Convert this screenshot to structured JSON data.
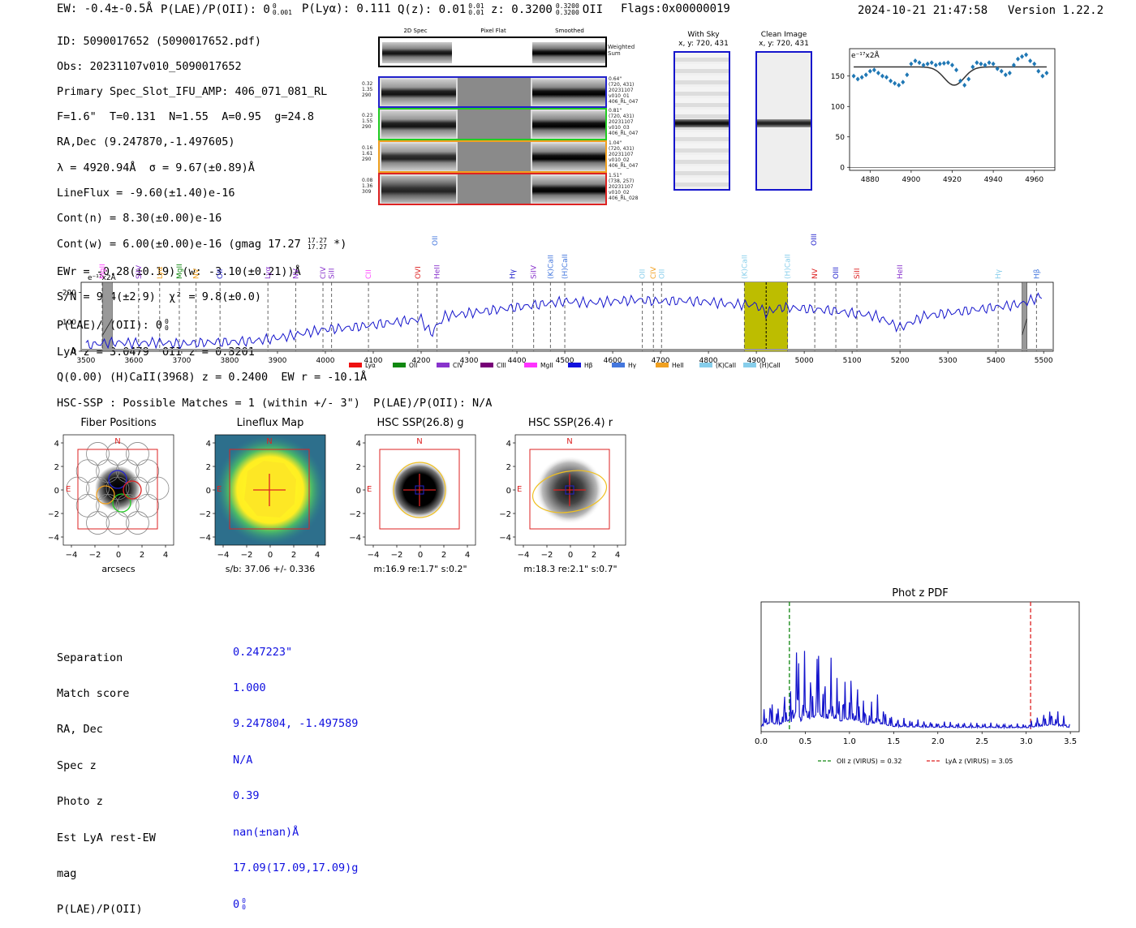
{
  "header": {
    "ew": "EW: -0.4±-0.5Å",
    "plae_label": "P(LAE)/P(OII): 0",
    "plae_sup": "0",
    "plae_sub": "0.001",
    "plya": "P(Lyα): 0.111",
    "qz": "Q(z): 0.01",
    "qz_sup": "0.01",
    "qz_sub": "0.01",
    "z": "z: 0.3200",
    "z_sup": "0.3200",
    "z_sub": "0.3200",
    "z_line": "OII",
    "flags": "Flags:0x00000019",
    "datetime": "2024-10-21 21:47:58",
    "version": "Version 1.22.2"
  },
  "info": {
    "id": "ID: 5090017652 (5090017652.pdf)",
    "obs": "Obs: 20231107v010_5090017652",
    "primary": "Primary Spec_Slot_IFU_AMP: 406_071_081_RL",
    "fstats": "F=1.6\"  T=0.131  N=1.55  A=0.95  g=24.8",
    "radec": "RA,Dec (9.247870,-1.497605)",
    "lambda": "λ = 4920.94Å  σ = 9.67(±0.89)Å",
    "lineflux": "LineFlux = -9.60(±1.40)e-16",
    "contn": "Cont(n) = 8.30(±0.00)e-16",
    "contw": "Cont(w) = 6.00(±0.00)e-16 (gmag 17.27",
    "contw_sup": "17.27",
    "contw_sub": "17.27",
    "contw_end": "*)",
    "ewr": "EWr = -0.28(±0.19) (w: -3.10(±0.21))Å",
    "sn": "S/N = 9.4(±2.9)  χ² = 9.8(±0.0)",
    "plae": "P(LAE)/P(OII): 0",
    "plae_sup": "0",
    "plae_sub": "0",
    "lyaz": "LyA z = 3.0479  OII z = 0.3201",
    "qline": "Q(0.00) (H)CaII(3968) z = 0.2400  EW r = -10.1Å"
  },
  "cutouts": {
    "col_titles": [
      "2D Spec",
      "Pixel Flat",
      "Smoothed"
    ],
    "weighted": "Weighted\nSum",
    "rows": [
      {
        "left": "0.32\n1.35\n290",
        "right": "0.64\"\n(720, 431)\n20231107\nv010_01\n406_RL_047",
        "color": "#2222cc"
      },
      {
        "left": "0.23\n1.55\n290",
        "right": "0.81\"\n(720, 431)\n20231107\nv010_03\n406_RL_047",
        "color": "#22cc22"
      },
      {
        "left": "0.16\n1.61\n290",
        "right": "1.04\"\n(720, 431)\n20231107\nv010_02\n406_RL_047",
        "color": "#f0a020"
      },
      {
        "left": "0.08\n1.36\n309",
        "right": "1.51\"\n(738, 257)\n20231107\nv010_02\n406_RL_028",
        "color": "#dd2222"
      }
    ]
  },
  "sky": {
    "with_sky_title": "With Sky",
    "with_sky_xy": "x, y: 720, 431",
    "clean_title": "Clean Image",
    "clean_xy": "x, y: 720, 431"
  },
  "zoom_chart": {
    "unit_label": "e⁻¹⁷x2Å",
    "xticks": [
      "4880",
      "4900",
      "4920",
      "4940",
      "4960"
    ],
    "yticks": [
      "0",
      "50",
      "100",
      "150"
    ]
  },
  "spectrum": {
    "unit_label": "e⁻¹⁷x2Å",
    "xticks": [
      "3500",
      "3600",
      "3700",
      "3800",
      "3900",
      "4000",
      "4100",
      "4200",
      "4300",
      "4400",
      "4500",
      "4600",
      "4700",
      "4800",
      "4900",
      "5000",
      "5100",
      "5200",
      "5300",
      "5400",
      "5500"
    ],
    "yticks": [
      "0",
      "100",
      "200"
    ],
    "line_labels": [
      {
        "t": "MgII",
        "c": "#ff44ff",
        "w": 3534
      },
      {
        "t": "SiIV",
        "c": "#8833cc",
        "w": 3610
      },
      {
        "t": "Lyα",
        "c": "#f0a020",
        "w": 3654
      },
      {
        "t": "MgII",
        "c": "#118811",
        "w": 3695
      },
      {
        "t": "NV",
        "c": "#f0a020",
        "w": 3730
      },
      {
        "t": "OII",
        "c": "#2222cc",
        "w": 3780
      },
      {
        "t": "Lyα",
        "c": "#8833cc",
        "w": 3880
      },
      {
        "t": "NV",
        "c": "#8833cc",
        "w": 3938
      },
      {
        "t": "CIV",
        "c": "#8833cc",
        "w": 3995
      },
      {
        "t": "SiII",
        "c": "#8833cc",
        "w": 4013
      },
      {
        "t": "CII",
        "c": "#ff44ff",
        "w": 4090
      },
      {
        "t": "OVI",
        "c": "#dd2222",
        "w": 4193
      },
      {
        "t": "HeII",
        "c": "#8833cc",
        "w": 4233
      },
      {
        "t": "Hγ",
        "c": "#2222cc",
        "w": 4391
      },
      {
        "t": "SiIV",
        "c": "#8833cc",
        "w": 4435
      },
      {
        "t": "(K)CaII",
        "c": "#4477dd",
        "w": 4470
      },
      {
        "t": "(H)CaII",
        "c": "#4477dd",
        "w": 4500
      },
      {
        "t": "OII",
        "c": "#87ceeb",
        "w": 4662
      },
      {
        "t": "CIV",
        "c": "#f0a020",
        "w": 4685
      },
      {
        "t": "OII",
        "c": "#87ceeb",
        "w": 4702
      },
      {
        "t": "(K)CaII",
        "c": "#87ceeb",
        "w": 4875
      },
      {
        "t": "(H)CaII",
        "c": "#87ceeb",
        "w": 4965
      },
      {
        "t": "NV",
        "c": "#dd2222",
        "w": 5022
      },
      {
        "t": "OIII",
        "c": "#2222cc",
        "w": 5066
      },
      {
        "t": "SiII",
        "c": "#dd2222",
        "w": 5110
      },
      {
        "t": "HeII",
        "c": "#8833cc",
        "w": 5200
      },
      {
        "t": "Hγ",
        "c": "#87ceeb",
        "w": 5405
      },
      {
        "t": "Hβ",
        "c": "#4477dd",
        "w": 5485
      }
    ],
    "upper_labels": [
      {
        "t": "OII",
        "c": "#4477dd",
        "w": 4229
      },
      {
        "t": "OIII",
        "c": "#2222cc",
        "w": 5020
      }
    ],
    "legend": [
      {
        "t": "Lyα",
        "c": "#ee1111"
      },
      {
        "t": "OII",
        "c": "#118811"
      },
      {
        "t": "CIV",
        "c": "#8833cc"
      },
      {
        "t": "CIII",
        "c": "#770077"
      },
      {
        "t": "MgII",
        "c": "#ff33ff"
      },
      {
        "t": "Hβ",
        "c": "#1111dd"
      },
      {
        "t": "Hγ",
        "c": "#4477dd"
      },
      {
        "t": "HeII",
        "c": "#f0a020"
      },
      {
        "t": "(K)CaII",
        "c": "#87ceeb"
      },
      {
        "t": "(H)CaII",
        "c": "#87ceeb"
      }
    ]
  },
  "hsc": {
    "header": "HSC-SSP : Possible Matches = 1 (within +/- 3\")  P(LAE)/P(OII): N/A",
    "panels": [
      {
        "title": "Fiber Positions",
        "caption": "arcsecs"
      },
      {
        "title": "Lineflux Map",
        "caption": "s/b: 37.06 +/- 0.336"
      },
      {
        "title": "HSC SSP(26.8) g",
        "caption": "m:16.9  re:1.7\"  s:0.2\""
      },
      {
        "title": "HSC SSP(26.4) r",
        "caption": "m:18.3  re:2.1\"  s:0.7\""
      }
    ],
    "axis_ticks": [
      "4",
      "2",
      "0",
      "−2",
      "−4"
    ],
    "xaxis_ticks": [
      "−4",
      "−2",
      "0",
      "2",
      "4"
    ],
    "n_label": "N",
    "e_label": "E"
  },
  "match": {
    "labels": [
      "Separation",
      "Match score",
      "RA, Dec",
      "Spec z",
      "Photo z",
      "Est LyA rest-EW",
      "mag",
      "P(LAE)/P(OII)"
    ],
    "values": [
      "0.247223\"",
      "1.000",
      "9.247804, -1.497589",
      "N/A",
      "0.39",
      "nan(±nan)Å",
      "17.09(17.09,17.09)g",
      "0"
    ],
    "plae_sup": "0",
    "plae_sub": "0"
  },
  "photz": {
    "title": "Phot z PDF",
    "xticks": [
      "0.0",
      "0.5",
      "1.0",
      "1.5",
      "2.0",
      "2.5",
      "3.0",
      "3.5"
    ],
    "oii_label": "OII z (VIRUS) = 0.32",
    "lya_label": "LyA z (VIRUS) = 3.05",
    "oii_z": 0.32,
    "lya_z": 3.05
  },
  "chart_data": [
    {
      "type": "scatter",
      "title": "Line zoom",
      "xlim": [
        4870,
        4970
      ],
      "ylim": [
        -5,
        195
      ],
      "x": [
        4872,
        4874,
        4876,
        4878,
        4880,
        4882,
        4884,
        4886,
        4888,
        4890,
        4892,
        4894,
        4896,
        4898,
        4900,
        4902,
        4904,
        4906,
        4908,
        4910,
        4912,
        4914,
        4916,
        4918,
        4920,
        4922,
        4924,
        4926,
        4928,
        4930,
        4932,
        4934,
        4936,
        4938,
        4940,
        4942,
        4944,
        4946,
        4948,
        4950,
        4952,
        4954,
        4956,
        4958,
        4960,
        4962,
        4964,
        4966
      ],
      "y": [
        150,
        145,
        148,
        152,
        158,
        160,
        155,
        150,
        148,
        142,
        138,
        135,
        140,
        152,
        170,
        175,
        172,
        168,
        170,
        172,
        168,
        170,
        171,
        172,
        168,
        160,
        142,
        135,
        145,
        165,
        172,
        170,
        168,
        172,
        170,
        162,
        158,
        152,
        155,
        168,
        178,
        182,
        185,
        175,
        170,
        158,
        150,
        155
      ],
      "fit_level": 165,
      "fit_center": 4920.94,
      "fit_depth": 30
    },
    {
      "type": "line",
      "title": "Full spectrum",
      "xlim": [
        3490,
        5520
      ],
      "ylim": [
        0,
        235
      ],
      "x": [
        3500,
        3550,
        3600,
        3650,
        3700,
        3750,
        3800,
        3850,
        3900,
        3950,
        4000,
        4050,
        4100,
        4150,
        4200,
        4220,
        4250,
        4300,
        4350,
        4400,
        4450,
        4500,
        4550,
        4600,
        4650,
        4700,
        4750,
        4800,
        4850,
        4900,
        4920,
        4950,
        5000,
        5050,
        5100,
        5150,
        5200,
        5250,
        5300,
        5350,
        5400,
        5450,
        5500
      ],
      "y": [
        20,
        30,
        28,
        30,
        25,
        30,
        32,
        35,
        45,
        60,
        75,
        80,
        90,
        100,
        110,
        60,
        120,
        130,
        140,
        150,
        160,
        170,
        165,
        170,
        175,
        170,
        172,
        168,
        160,
        158,
        130,
        150,
        145,
        140,
        130,
        120,
        80,
        120,
        130,
        140,
        150,
        160,
        190
      ],
      "highlight_band": [
        4875,
        4966
      ],
      "masked": [
        [
          3535,
          3555
        ],
        [
          5455,
          5465
        ]
      ]
    },
    {
      "type": "line",
      "title": "Phot z PDF",
      "xlim": [
        0,
        3.6
      ],
      "x": [
        0.0,
        0.1,
        0.2,
        0.3,
        0.35,
        0.4,
        0.45,
        0.5,
        0.55,
        0.6,
        0.65,
        0.7,
        0.8,
        0.9,
        1.0,
        1.1,
        1.2,
        1.3,
        1.5,
        2.0,
        2.5,
        3.0,
        3.3,
        3.5
      ],
      "y": [
        0.1,
        0.3,
        0.2,
        0.4,
        0.3,
        1.0,
        0.4,
        0.7,
        0.5,
        0.6,
        0.9,
        0.5,
        0.6,
        0.4,
        0.5,
        0.4,
        0.2,
        0.3,
        0.1,
        0.06,
        0.05,
        0.04,
        0.2,
        0.05
      ]
    }
  ]
}
